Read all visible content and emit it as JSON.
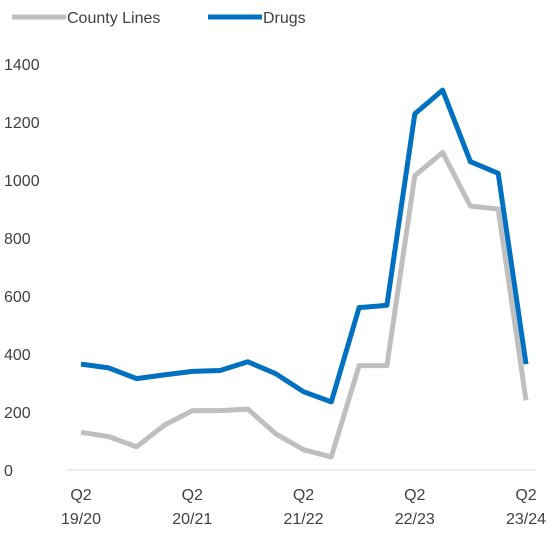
{
  "chart_data": {
    "type": "line",
    "title": "",
    "xlabel": "",
    "ylabel": "",
    "ylim": [
      0,
      1400
    ],
    "yticks": [
      0,
      200,
      400,
      600,
      800,
      1000,
      1200,
      1400
    ],
    "grid": false,
    "legend_position": "top-left",
    "x_tick_labels": [
      {
        "index": 0,
        "quarter": "Q2",
        "year": "19/20"
      },
      {
        "index": 4,
        "quarter": "Q2",
        "year": "20/21"
      },
      {
        "index": 8,
        "quarter": "Q2",
        "year": "21/22"
      },
      {
        "index": 12,
        "quarter": "Q2",
        "year": "22/23"
      },
      {
        "index": 16,
        "quarter": "Q2",
        "year": "23/24"
      }
    ],
    "series": [
      {
        "name": "County Lines",
        "color": "#bfbfbf",
        "values": [
          130,
          115,
          80,
          155,
          205,
          205,
          210,
          125,
          70,
          45,
          360,
          360,
          1015,
          1095,
          910,
          900,
          240
        ]
      },
      {
        "name": "Drugs",
        "color": "#0070c0",
        "values": [
          365,
          352,
          315,
          328,
          340,
          343,
          373,
          332,
          270,
          235,
          560,
          568,
          1228,
          1310,
          1063,
          1023,
          365
        ]
      }
    ]
  }
}
